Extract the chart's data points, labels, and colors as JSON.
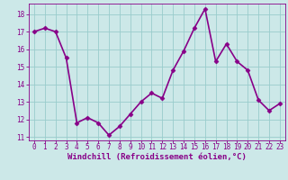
{
  "x": [
    0,
    1,
    2,
    3,
    4,
    5,
    6,
    7,
    8,
    9,
    10,
    11,
    12,
    13,
    14,
    15,
    16,
    17,
    18,
    19,
    20,
    21,
    22,
    23
  ],
  "y": [
    17.0,
    17.2,
    17.0,
    15.5,
    11.8,
    12.1,
    11.8,
    11.1,
    11.6,
    12.3,
    13.0,
    13.5,
    13.2,
    14.8,
    15.9,
    17.2,
    18.3,
    15.3,
    16.3,
    15.3,
    14.8,
    13.1,
    12.5,
    12.9
  ],
  "line_color": "#880088",
  "marker": "D",
  "marker_size": 2.5,
  "bg_color": "#cce8e8",
  "grid_color": "#99cccc",
  "xlabel": "Windchill (Refroidissement éolien,°C)",
  "xlabel_color": "#880088",
  "tick_color": "#880088",
  "label_color": "#880088",
  "ylim": [
    10.8,
    18.6
  ],
  "yticks": [
    11,
    12,
    13,
    14,
    15,
    16,
    17,
    18
  ],
  "xlim": [
    -0.5,
    23.5
  ],
  "xticks": [
    0,
    1,
    2,
    3,
    4,
    5,
    6,
    7,
    8,
    9,
    10,
    11,
    12,
    13,
    14,
    15,
    16,
    17,
    18,
    19,
    20,
    21,
    22,
    23
  ],
  "linewidth": 1.2,
  "tick_fontsize": 5.5,
  "xlabel_fontsize": 6.5
}
